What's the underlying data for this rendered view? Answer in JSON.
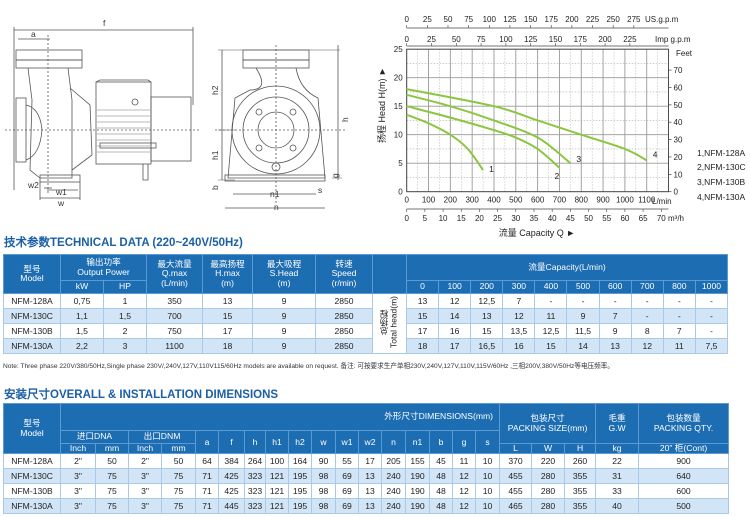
{
  "drawing": {
    "labels": {
      "f": "f",
      "a": "a",
      "w2": "w2",
      "w1": "w1",
      "w": "w",
      "h2": "h2",
      "h": "h",
      "h1": "h1",
      "b": "b",
      "n1": "n1",
      "n": "n",
      "g": "g",
      "s": "s"
    }
  },
  "chart_data": {
    "type": "line",
    "xlabel": "流量 Capacity Q ►",
    "ylabel": "扬程 Head H(m) ►",
    "xunit": "L/min",
    "xlim": [
      0,
      1200
    ],
    "ylim": [
      0,
      25
    ],
    "x_ticks": [
      0,
      100,
      200,
      300,
      400,
      500,
      600,
      700,
      800,
      900,
      1000,
      1100
    ],
    "y_ticks": [
      0,
      5,
      10,
      15,
      20,
      25
    ],
    "grid": true,
    "secondary_axes": {
      "us_gpm": {
        "label": "US.g.p.m",
        "ticks": [
          0,
          25,
          50,
          75,
          100,
          125,
          150,
          175,
          200,
          225,
          250,
          275
        ]
      },
      "imp_gpm": {
        "label": "Imp g.p.m",
        "ticks": [
          0,
          25,
          50,
          75,
          100,
          125,
          150,
          175,
          200,
          225
        ]
      },
      "feet": {
        "label": "Feet",
        "ticks": [
          0,
          10,
          20,
          30,
          40,
          50,
          60,
          70
        ]
      },
      "m3h": {
        "label": "m³/h",
        "ticks": [
          0,
          5,
          10,
          15,
          20,
          25,
          30,
          35,
          40,
          45,
          50,
          55,
          60,
          65,
          70
        ]
      }
    },
    "series": [
      {
        "name": "1",
        "legend": "1,NFM-128A",
        "x": [
          0,
          100,
          200,
          280,
          350
        ],
        "y": [
          13.5,
          12,
          10,
          7.5,
          3.8
        ]
      },
      {
        "name": "2",
        "legend": "2,NFM-130C",
        "x": [
          0,
          200,
          400,
          500,
          600,
          700
        ],
        "y": [
          15,
          13,
          10.8,
          9.5,
          7.5,
          4.2
        ]
      },
      {
        "name": "3",
        "legend": "3,NFM-130B",
        "x": [
          0,
          200,
          400,
          600,
          750
        ],
        "y": [
          17,
          15,
          12.5,
          9.5,
          5
        ]
      },
      {
        "name": "4",
        "legend": "4,NFM-130A",
        "x": [
          0,
          400,
          600,
          800,
          1000,
          1100
        ],
        "y": [
          18,
          15,
          12.5,
          10,
          7.5,
          5.5
        ]
      }
    ],
    "legend_position": "right",
    "line_color": "#8cc63f"
  },
  "tech": {
    "title": "技术参数TECHNICAL DATA (220~240V/50Hz)",
    "headers": {
      "model": "型号\nModel",
      "power": "输出功率\nOutput Power",
      "kw": "kW",
      "hp": "HP",
      "q": "最大流量\nQ.max\n(L/min)",
      "h": "最高扬程\nH.max\n(m)",
      "s": "最大吸程\nS.Head\n(m)",
      "speed": "转速\nSpeed\n(r/min)",
      "capacity": "流量Capacity(L/min)",
      "total_head": "总扬程\nTotal head(m)"
    },
    "capacity_points": [
      "0",
      "100",
      "200",
      "300",
      "400",
      "500",
      "600",
      "700",
      "800",
      "1000"
    ],
    "rows": [
      {
        "model": "NFM-128A",
        "kw": "0,75",
        "hp": "1",
        "q": "350",
        "h": "13",
        "s": "9",
        "speed": "2850",
        "heads": [
          "13",
          "12",
          "12,5",
          "7",
          "-",
          "-",
          "-",
          "-",
          "-",
          "-"
        ]
      },
      {
        "model": "NFM-130C",
        "kw": "1,1",
        "hp": "1,5",
        "q": "700",
        "h": "15",
        "s": "9",
        "speed": "2850",
        "heads": [
          "15",
          "14",
          "13",
          "12",
          "11",
          "9",
          "7",
          "-",
          "-",
          "-"
        ]
      },
      {
        "model": "NFM-130B",
        "kw": "1,5",
        "hp": "2",
        "q": "750",
        "h": "17",
        "s": "9",
        "speed": "2850",
        "heads": [
          "17",
          "16",
          "15",
          "13,5",
          "12,5",
          "11,5",
          "9",
          "8",
          "7",
          "-"
        ]
      },
      {
        "model": "NFM-130A",
        "kw": "2,2",
        "hp": "3",
        "q": "1100",
        "h": "18",
        "s": "9",
        "speed": "2850",
        "heads": [
          "18",
          "17",
          "16,5",
          "16",
          "15",
          "14",
          "13",
          "12",
          "11",
          "7,5"
        ]
      }
    ],
    "note": "Note: Three phase 220V/380/50Hz,Single phase 230V/,240V,127V,110V115/60Hz models are available on request. 备注: 可按要求生产单相230V,240V,127V,110V,115V/60Hz ,三相200V,380V/50Hz等电压频率。"
  },
  "dims": {
    "title": "安装尺寸OVERALL & INSTALLATION DIMENSIONS",
    "headers": {
      "model": "型号\nModel",
      "dimensions": "外形尺寸DIMENSIONS(mm)",
      "dna": "进口DNA",
      "dnm": "出口DNM",
      "inch": "Inch",
      "mm": "mm",
      "packing": "包装尺寸\nPACKING SIZE(mm)",
      "gw": "毛重\nG.W",
      "qty": "包装数量\nPACKING QTY.",
      "letters": [
        "a",
        "f",
        "h",
        "h1",
        "h2",
        "w",
        "w1",
        "w2",
        "n",
        "n1",
        "b",
        "g",
        "s"
      ],
      "pack": [
        "L",
        "W",
        "H"
      ],
      "kg": "kg",
      "cont": "20\" 柜(Cont)"
    },
    "rows": [
      [
        "NFM-128A",
        "2\"",
        "50",
        "2\"",
        "50",
        "64",
        "384",
        "264",
        "100",
        "164",
        "90",
        "55",
        "17",
        "205",
        "155",
        "45",
        "11",
        "10",
        "370",
        "220",
        "260",
        "22",
        "900"
      ],
      [
        "NFM-130C",
        "3\"",
        "75",
        "3\"",
        "75",
        "71",
        "425",
        "323",
        "121",
        "195",
        "98",
        "69",
        "13",
        "240",
        "190",
        "48",
        "12",
        "10",
        "455",
        "280",
        "355",
        "31",
        "640"
      ],
      [
        "NFM-130B",
        "3\"",
        "75",
        "3\"",
        "75",
        "71",
        "425",
        "323",
        "121",
        "195",
        "98",
        "69",
        "13",
        "240",
        "190",
        "48",
        "12",
        "10",
        "455",
        "280",
        "355",
        "33",
        "600"
      ],
      [
        "NFM-130A",
        "3\"",
        "75",
        "3\"",
        "75",
        "71",
        "445",
        "323",
        "121",
        "195",
        "98",
        "69",
        "13",
        "240",
        "190",
        "48",
        "12",
        "10",
        "465",
        "280",
        "355",
        "40",
        "500"
      ]
    ]
  }
}
